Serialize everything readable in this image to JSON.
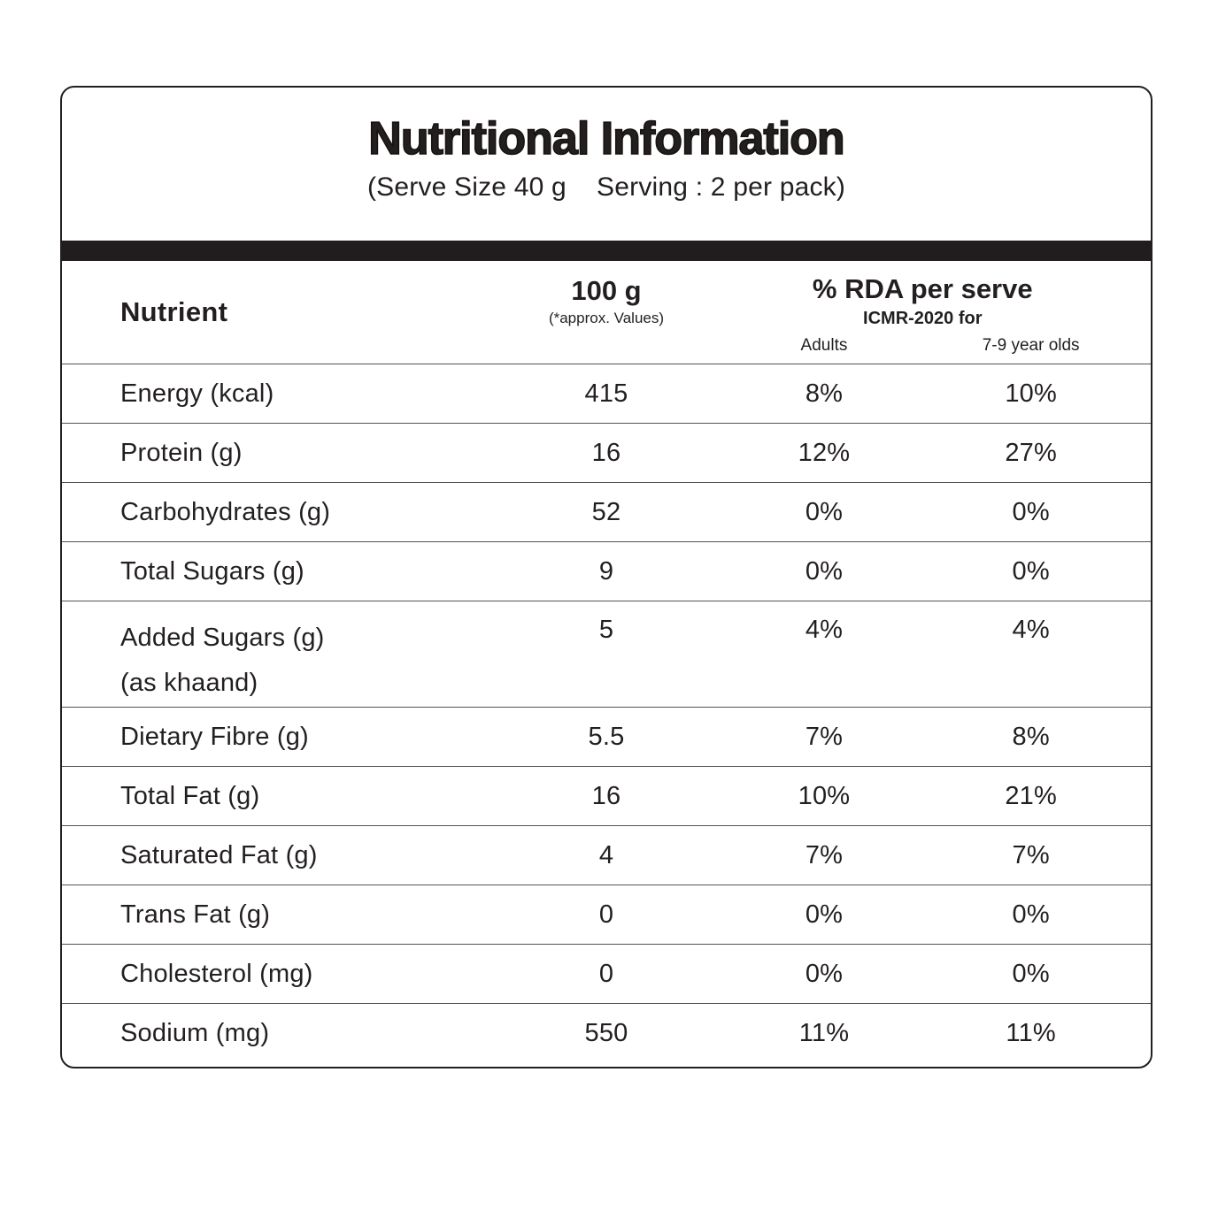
{
  "header": {
    "title": "Nutritional Information",
    "subtitle": "(Serve Size 40 g    Serving : 2 per pack)"
  },
  "table": {
    "columns": {
      "nutrient": "Nutrient",
      "per100g": "100 g",
      "per100g_note": "(*approx. Values)",
      "rda_title": "% RDA per serve",
      "rda_note": "ICMR-2020 for",
      "rda_adults": "Adults",
      "rda_kids": "7-9 year olds"
    },
    "rows": [
      {
        "nutrient": "Energy (kcal)",
        "per100g": "415",
        "rda_adults": "8%",
        "rda_kids": "10%"
      },
      {
        "nutrient": "Protein (g)",
        "per100g": "16",
        "rda_adults": "12%",
        "rda_kids": "27%"
      },
      {
        "nutrient": "Carbohydrates (g)",
        "per100g": "52",
        "rda_adults": "0%",
        "rda_kids": "0%"
      },
      {
        "nutrient": "Total Sugars (g)",
        "per100g": "9",
        "rda_adults": "0%",
        "rda_kids": "0%"
      },
      {
        "nutrient": "Added Sugars (g)\n(as khaand)",
        "per100g": "5",
        "rda_adults": "4%",
        "rda_kids": "4%"
      },
      {
        "nutrient": "Dietary Fibre (g)",
        "per100g": "5.5",
        "rda_adults": "7%",
        "rda_kids": "8%"
      },
      {
        "nutrient": "Total Fat (g)",
        "per100g": "16",
        "rda_adults": "10%",
        "rda_kids": "21%"
      },
      {
        "nutrient": "Saturated Fat (g)",
        "per100g": "4",
        "rda_adults": "7%",
        "rda_kids": "7%"
      },
      {
        "nutrient": "Trans Fat (g)",
        "per100g": "0",
        "rda_adults": "0%",
        "rda_kids": "0%"
      },
      {
        "nutrient": "Cholesterol (mg)",
        "per100g": "0",
        "rda_adults": "0%",
        "rda_kids": "0%"
      },
      {
        "nutrient": "Sodium (mg)",
        "per100g": "550",
        "rda_adults": "11%",
        "rda_kids": "11%"
      }
    ]
  },
  "colors": {
    "text": "#231f20",
    "divider_bar": "#211d1e",
    "row_separator": "#535355",
    "background": "#ffffff"
  }
}
